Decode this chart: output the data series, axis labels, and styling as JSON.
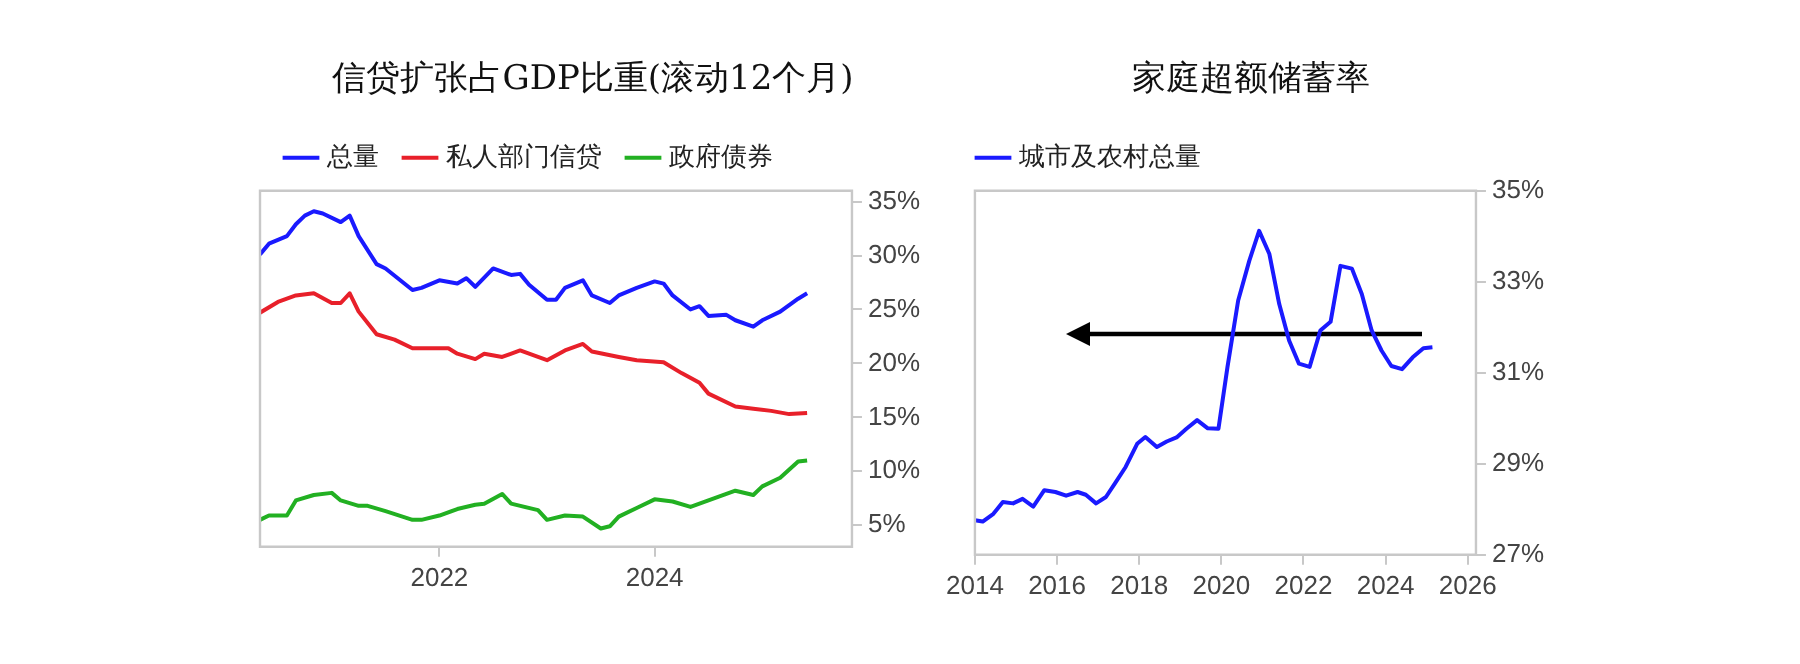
{
  "chart_data": [
    {
      "type": "line",
      "title": "信贷扩张占GDP比重(滚动12个月)",
      "legend": "top",
      "grid": false,
      "marker": "none",
      "xlim": [
        "2020-05",
        "2025-11"
      ],
      "xticks": [
        {
          "value": "2022-01",
          "label": "2022"
        },
        {
          "value": "2024-01",
          "label": "2024"
        }
      ],
      "ylim": [
        3,
        36
      ],
      "yticks": [
        {
          "value": 5,
          "label": "5%"
        },
        {
          "value": 10,
          "label": "10%"
        },
        {
          "value": 15,
          "label": "15%"
        },
        {
          "value": 20,
          "label": "20%"
        },
        {
          "value": 25,
          "label": "25%"
        },
        {
          "value": 30,
          "label": "30%"
        },
        {
          "value": 35,
          "label": "35%"
        }
      ],
      "series": [
        {
          "name": "总量",
          "color": "#1a1aff",
          "x": [
            "2020-05",
            "2020-06",
            "2020-08",
            "2020-09",
            "2020-10",
            "2020-11",
            "2020-12",
            "2021-02",
            "2021-03",
            "2021-04",
            "2021-06",
            "2021-07",
            "2021-10",
            "2021-11",
            "2022-01",
            "2022-03",
            "2022-04",
            "2022-05",
            "2022-07",
            "2022-09",
            "2022-10",
            "2022-11",
            "2023-01",
            "2023-02",
            "2023-03",
            "2023-05",
            "2023-06",
            "2023-08",
            "2023-09",
            "2023-11",
            "2024-01",
            "2024-02",
            "2024-03",
            "2024-05",
            "2024-06",
            "2024-07",
            "2024-09",
            "2024-10",
            "2024-12",
            "2025-01",
            "2025-03",
            "2025-05",
            "2025-06"
          ],
          "values": [
            30.1,
            31.1,
            31.8,
            32.9,
            33.7,
            34.1,
            33.9,
            33.1,
            33.7,
            31.8,
            29.2,
            28.8,
            26.8,
            27.0,
            27.7,
            27.4,
            27.9,
            27.1,
            28.8,
            28.2,
            28.3,
            27.3,
            25.9,
            25.9,
            27.0,
            27.7,
            26.3,
            25.6,
            26.3,
            27.0,
            27.6,
            27.4,
            26.3,
            25.0,
            25.3,
            24.4,
            24.5,
            24.0,
            23.4,
            24.0,
            24.8,
            26.0,
            26.5
          ]
        },
        {
          "name": "私人部门信贷",
          "color": "#e8202a",
          "x": [
            "2020-05",
            "2020-07",
            "2020-09",
            "2020-11",
            "2021-01",
            "2021-02",
            "2021-03",
            "2021-04",
            "2021-06",
            "2021-08",
            "2021-10",
            "2022-01",
            "2022-02",
            "2022-03",
            "2022-05",
            "2022-06",
            "2022-08",
            "2022-10",
            "2023-01",
            "2023-03",
            "2023-05",
            "2023-06",
            "2023-09",
            "2023-11",
            "2024-02",
            "2024-04",
            "2024-06",
            "2024-07",
            "2024-10",
            "2024-12",
            "2025-02",
            "2025-04",
            "2025-06"
          ],
          "values": [
            24.7,
            25.7,
            26.3,
            26.5,
            25.6,
            25.6,
            26.5,
            24.8,
            22.7,
            22.2,
            21.4,
            21.4,
            21.4,
            20.9,
            20.4,
            20.9,
            20.6,
            21.2,
            20.3,
            21.2,
            21.8,
            21.1,
            20.6,
            20.3,
            20.1,
            19.1,
            18.2,
            17.2,
            16.0,
            15.8,
            15.6,
            15.3,
            15.4
          ]
        },
        {
          "name": "政府债券",
          "color": "#22b022",
          "x": [
            "2020-05",
            "2020-06",
            "2020-08",
            "2020-09",
            "2020-11",
            "2021-01",
            "2021-02",
            "2021-04",
            "2021-05",
            "2021-07",
            "2021-10",
            "2021-11",
            "2022-01",
            "2022-03",
            "2022-05",
            "2022-06",
            "2022-08",
            "2022-09",
            "2022-12",
            "2023-01",
            "2023-03",
            "2023-05",
            "2023-07",
            "2023-08",
            "2023-09",
            "2023-11",
            "2024-01",
            "2024-03",
            "2024-05",
            "2024-07",
            "2024-10",
            "2024-12",
            "2025-01",
            "2025-03",
            "2025-05",
            "2025-06"
          ],
          "values": [
            5.5,
            5.9,
            5.9,
            7.3,
            7.8,
            8.0,
            7.3,
            6.8,
            6.8,
            6.3,
            5.5,
            5.5,
            5.9,
            6.5,
            6.9,
            7.0,
            7.9,
            7.0,
            6.4,
            5.5,
            5.9,
            5.8,
            4.7,
            4.9,
            5.8,
            6.6,
            7.4,
            7.2,
            6.7,
            7.3,
            8.2,
            7.8,
            8.6,
            9.4,
            10.9,
            11.0
          ]
        }
      ]
    },
    {
      "type": "line",
      "title": "家庭超额储蓄率",
      "legend": "top",
      "grid": false,
      "marker": "none",
      "xlim": [
        2014,
        2026.2
      ],
      "xticks": [
        2014,
        2016,
        2018,
        2020,
        2022,
        2024,
        2026
      ],
      "ylim": [
        27,
        35
      ],
      "yticks": [
        {
          "value": 27,
          "label": "27%"
        },
        {
          "value": 29,
          "label": "29%"
        },
        {
          "value": 31,
          "label": "31%"
        },
        {
          "value": 33,
          "label": "33%"
        },
        {
          "value": 35,
          "label": "35%"
        }
      ],
      "series": [
        {
          "name": "城市及农村总量",
          "color": "#1a1aff",
          "x": [
            2014.0,
            2014.19,
            2014.45,
            2014.68,
            2014.93,
            2015.16,
            2015.42,
            2015.69,
            2015.96,
            2016.22,
            2016.5,
            2016.7,
            2016.95,
            2017.19,
            2017.41,
            2017.67,
            2017.95,
            2018.15,
            2018.43,
            2018.67,
            2018.91,
            2019.15,
            2019.41,
            2019.67,
            2019.93,
            2020.15,
            2020.41,
            2020.68,
            2020.92,
            2021.17,
            2021.41,
            2021.65,
            2021.89,
            2022.15,
            2022.41,
            2022.66,
            2022.9,
            2023.18,
            2023.42,
            2023.66,
            2023.9,
            2024.14,
            2024.4,
            2024.66,
            2024.92,
            2025.14
          ],
          "values": [
            27.76,
            27.73,
            27.9,
            28.16,
            28.13,
            28.23,
            28.06,
            28.42,
            28.38,
            28.3,
            28.38,
            28.32,
            28.13,
            28.27,
            28.57,
            28.93,
            29.44,
            29.59,
            29.37,
            29.49,
            29.58,
            29.77,
            29.96,
            29.78,
            29.77,
            31.13,
            32.59,
            33.46,
            34.12,
            33.61,
            32.51,
            31.71,
            31.2,
            31.13,
            31.93,
            32.12,
            33.35,
            33.29,
            32.73,
            31.93,
            31.49,
            31.15,
            31.08,
            31.34,
            31.54,
            31.56
          ]
        }
      ]
    }
  ]
}
